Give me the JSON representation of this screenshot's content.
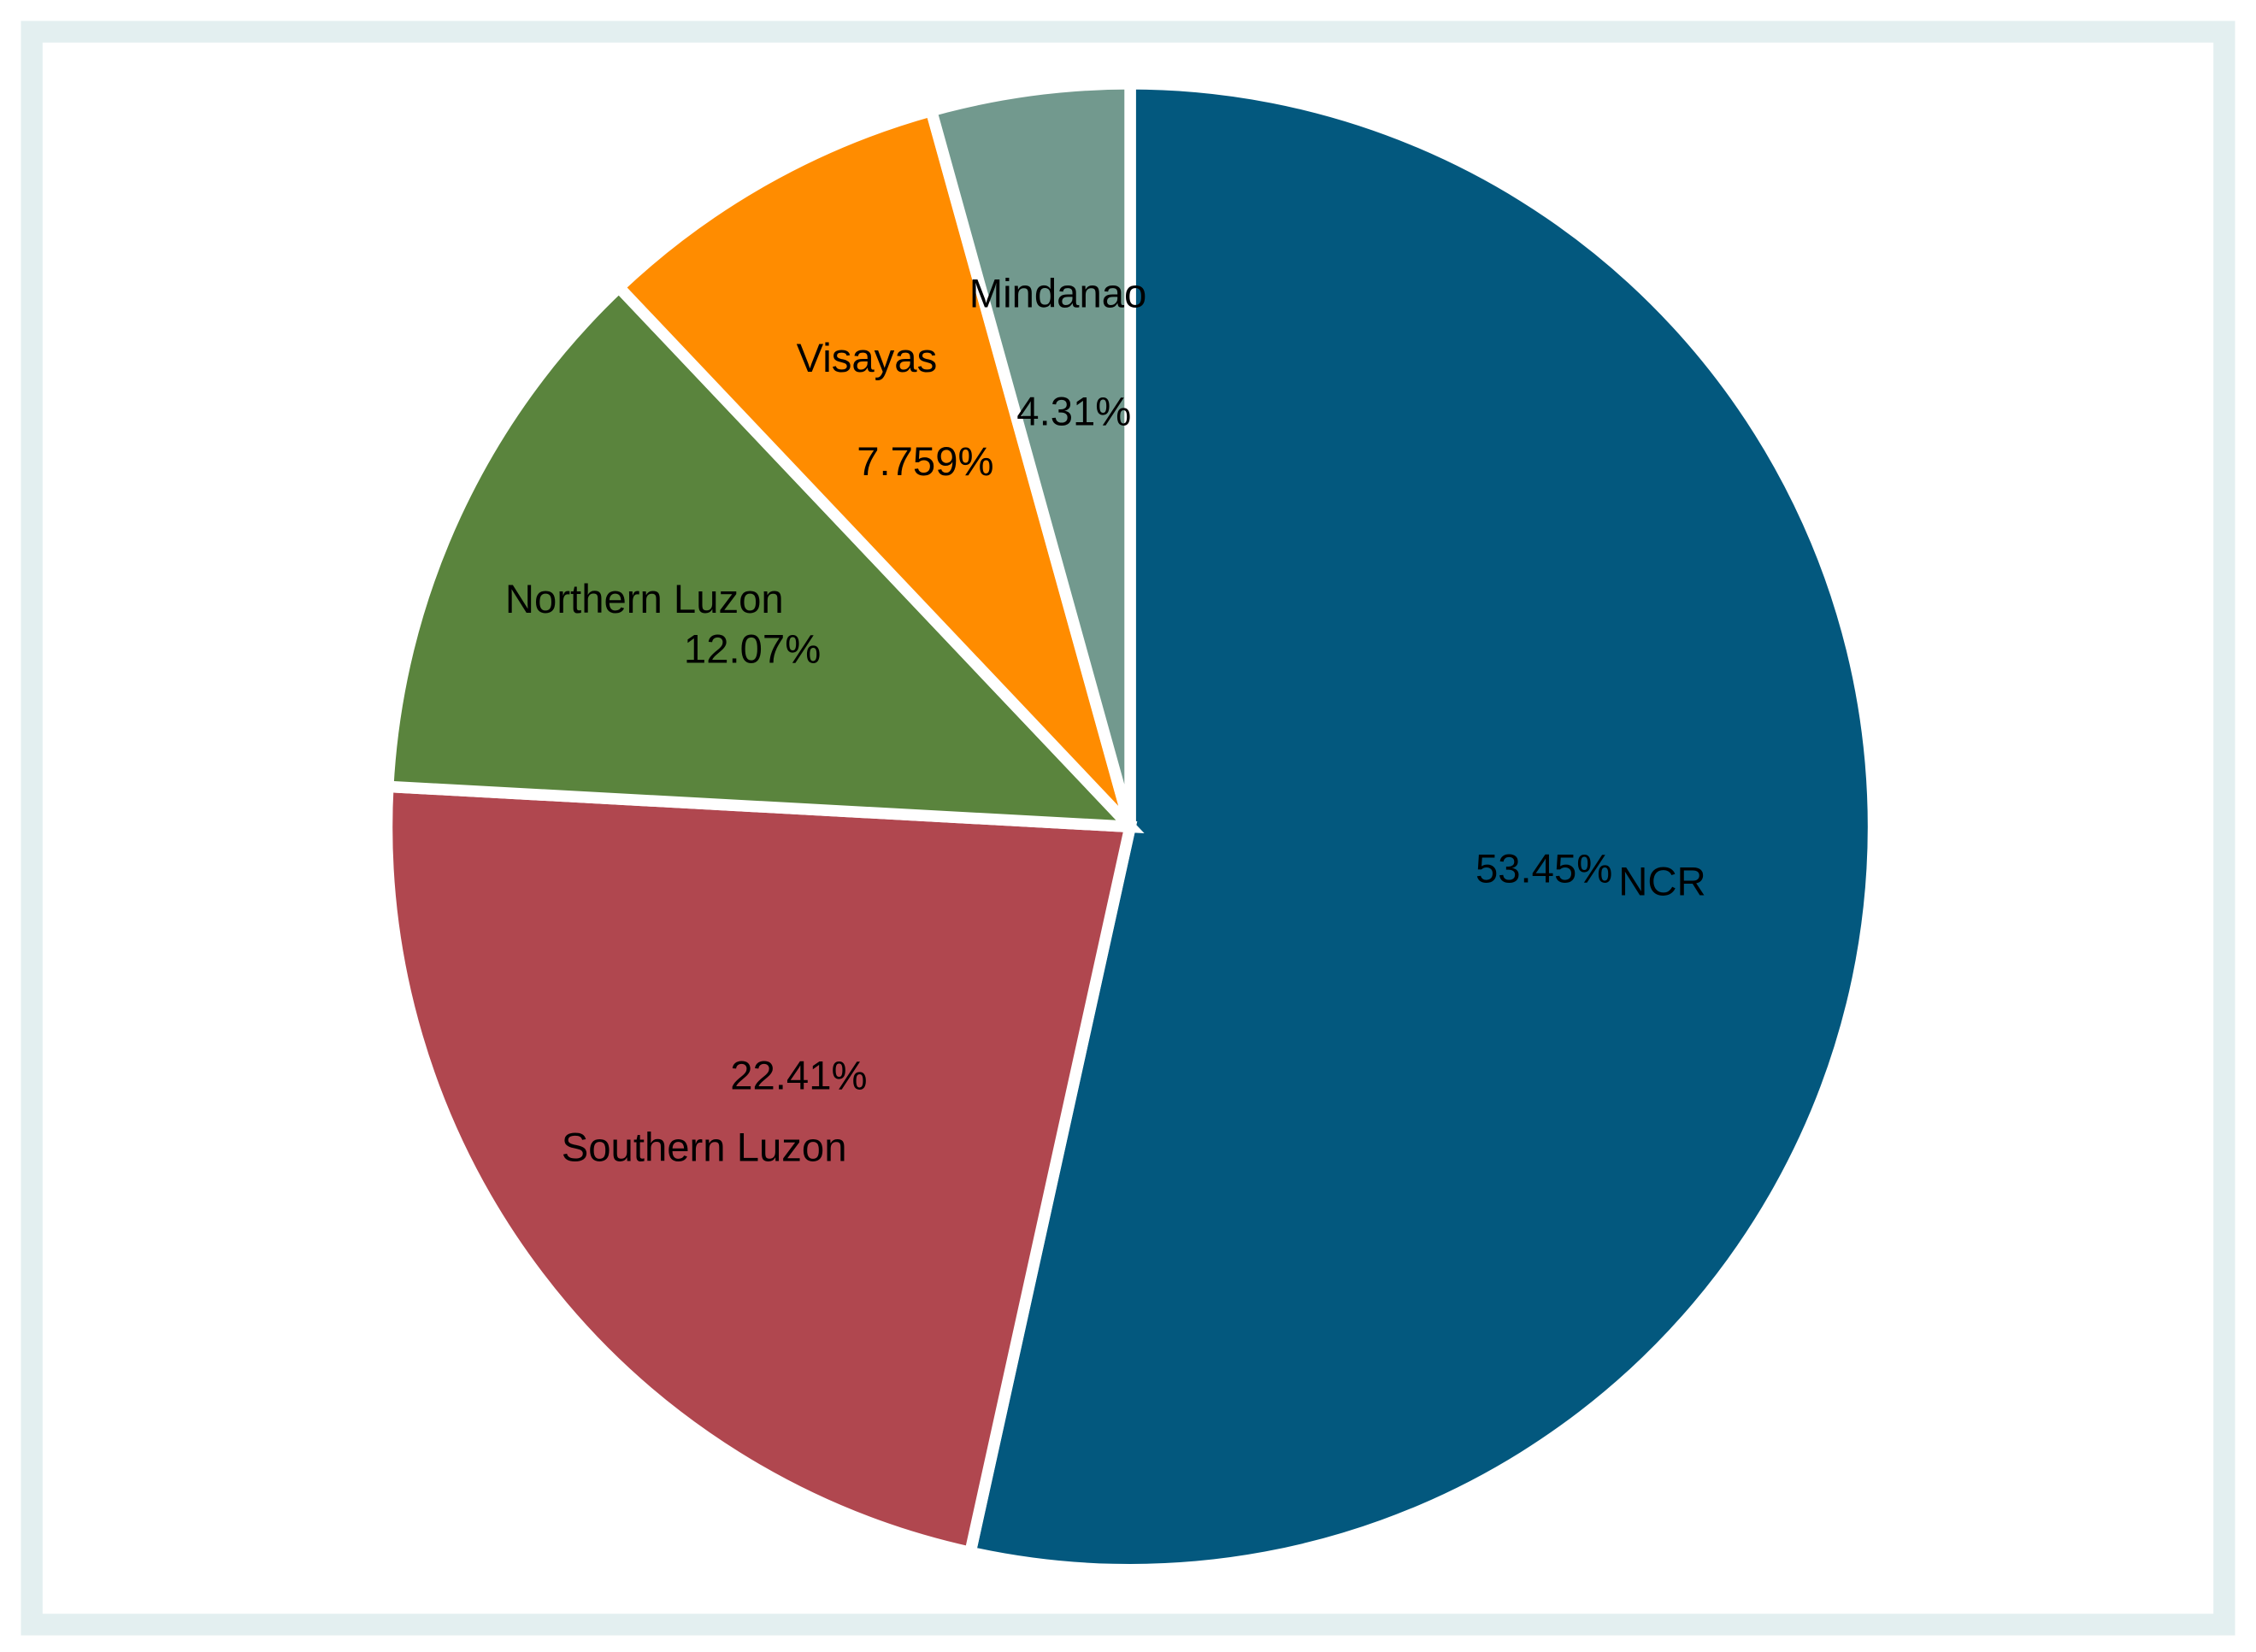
{
  "chart_data": {
    "type": "pie",
    "categories": [
      "NCR",
      "Southern Luzon",
      "Northern Luzon",
      "Visayas",
      "Mindanao"
    ],
    "values": [
      53.45,
      22.41,
      12.07,
      7.759,
      4.31
    ],
    "value_labels": [
      "53.45%",
      "22.41%",
      "12.07%",
      "7.759%",
      "4.31%"
    ],
    "colors": [
      "#03587e",
      "#b0474f",
      "#5a843d",
      "#ff8c00",
      "#72998e"
    ]
  }
}
